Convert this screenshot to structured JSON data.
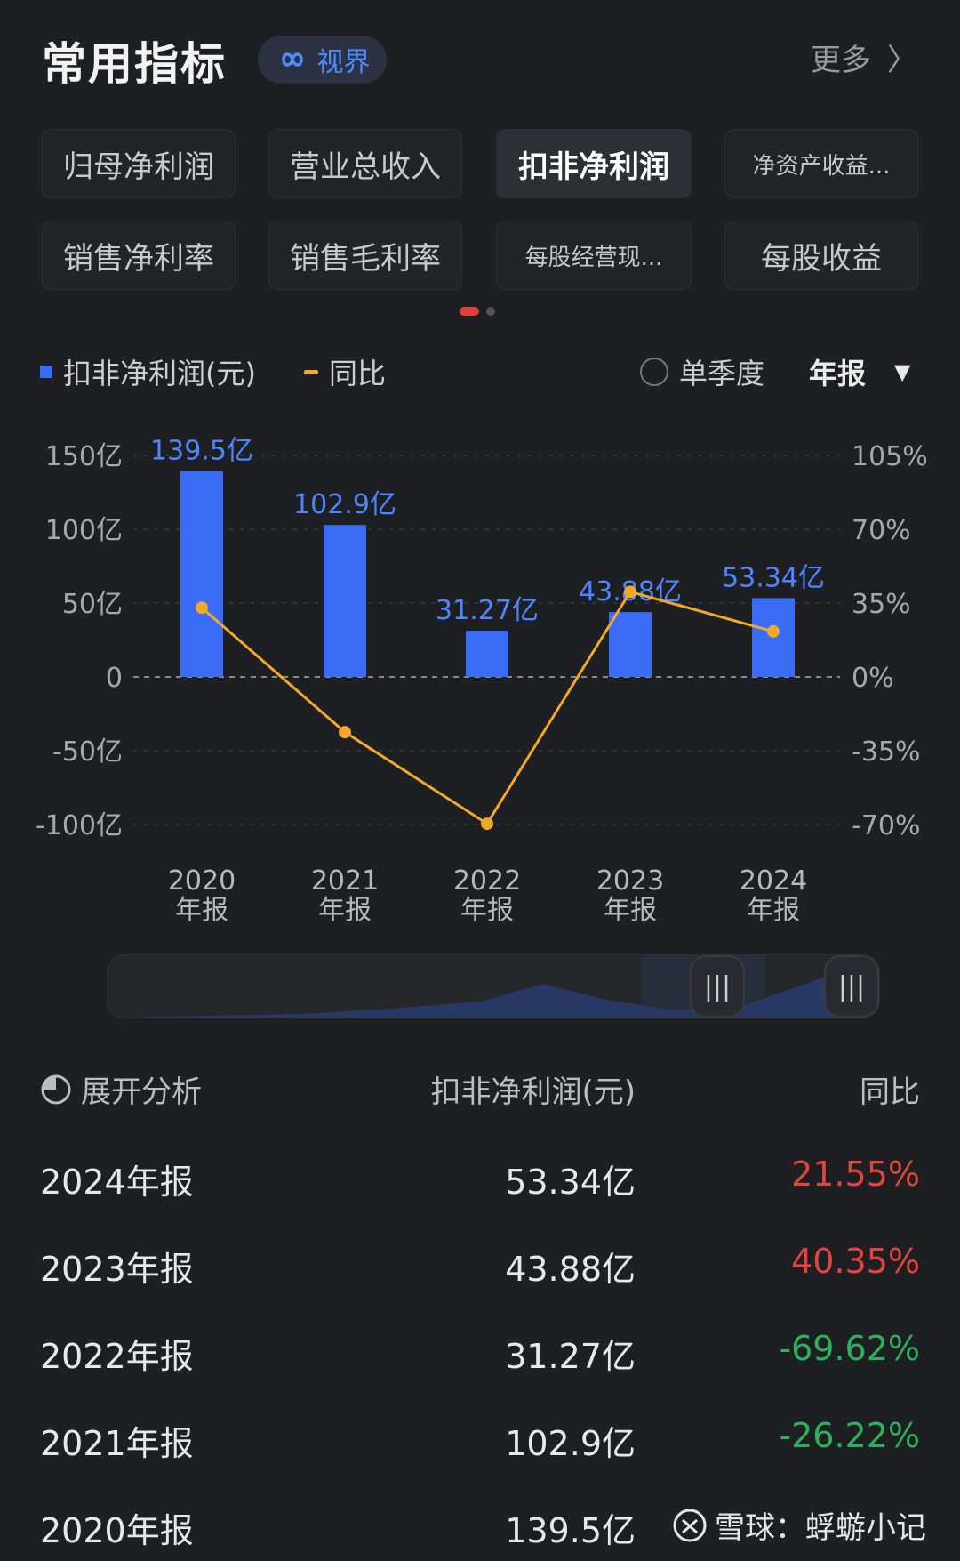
{
  "header": {
    "title": "常用指标",
    "badge": "视界",
    "more": "更多"
  },
  "tabs": [
    {
      "label": "归母净利润"
    },
    {
      "label": "营业总收入"
    },
    {
      "label": "扣非净利润"
    },
    {
      "label": "净资产收益..."
    },
    {
      "label": "销售净利率"
    },
    {
      "label": "销售毛利率"
    },
    {
      "label": "每股经营现..."
    },
    {
      "label": "每股收益"
    }
  ],
  "legend": {
    "bar": "扣非净利润(元)",
    "line": "同比",
    "toggle": "单季度",
    "period": "年报"
  },
  "colors": {
    "bar": "#3a6cf5",
    "line": "#f0a92a",
    "positive": "#e2443f",
    "negative": "#2fb05a"
  },
  "chart_data": {
    "type": "bar",
    "categories": [
      "2020\n年报",
      "2021\n年报",
      "2022\n年报",
      "2023\n年报",
      "2024\n年报"
    ],
    "series": [
      {
        "name": "扣非净利润(元)",
        "values": [
          139.5,
          102.9,
          31.27,
          43.88,
          53.34
        ],
        "labels": [
          "139.5亿",
          "102.9亿",
          "31.27亿",
          "43.88亿",
          "53.34亿"
        ]
      },
      {
        "name": "同比",
        "values": [
          32.8,
          -26.22,
          -69.62,
          40.35,
          21.55
        ]
      }
    ],
    "yticks_left": [
      "150亿",
      "100亿",
      "50亿",
      "0",
      "-50亿",
      "-100亿"
    ],
    "yticks_right": [
      "105%",
      "70%",
      "35%",
      "0%",
      "-35%",
      "-70%"
    ],
    "ylim_left": [
      -100,
      150
    ],
    "ylim_right": [
      -70,
      105
    ]
  },
  "table": {
    "head": {
      "col1": "展开分析",
      "col2": "扣非净利润(元)",
      "col3": "同比"
    },
    "rows": [
      {
        "period": "2024年报",
        "value": "53.34亿",
        "yoy": "21.55%",
        "dir": "up"
      },
      {
        "period": "2023年报",
        "value": "43.88亿",
        "yoy": "40.35%",
        "dir": "up"
      },
      {
        "period": "2022年报",
        "value": "31.27亿",
        "yoy": "-69.62%",
        "dir": "down"
      },
      {
        "period": "2021年报",
        "value": "102.9亿",
        "yoy": "-26.22%",
        "dir": "down"
      },
      {
        "period": "2020年报",
        "value": "139.5亿",
        "yoy": "",
        "dir": "up"
      }
    ]
  },
  "watermark": "雪球：蜉蝣小记"
}
